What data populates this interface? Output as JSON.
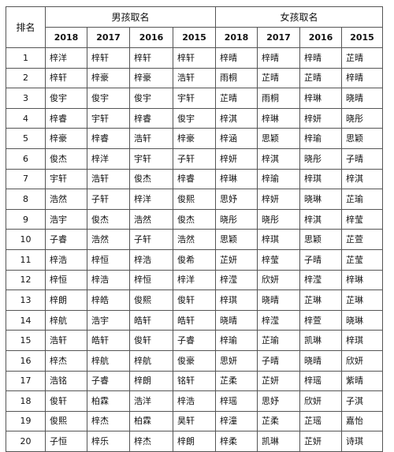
{
  "header": {
    "rank_label": "排名",
    "boys_label": "男孩取名",
    "girls_label": "女孩取名",
    "years": [
      "2018",
      "2017",
      "2016",
      "2015"
    ]
  },
  "rows": [
    {
      "rank": "1",
      "boys": [
        "梓洋",
        "梓轩",
        "梓轩",
        "梓轩"
      ],
      "girls": [
        "梓晴",
        "梓晴",
        "梓晴",
        "芷晴"
      ]
    },
    {
      "rank": "2",
      "boys": [
        "梓轩",
        "梓豪",
        "梓豪",
        "浩轩"
      ],
      "girls": [
        "雨桐",
        "芷晴",
        "芷晴",
        "梓晴"
      ]
    },
    {
      "rank": "3",
      "boys": [
        "俊宇",
        "俊宇",
        "俊宇",
        "宇轩"
      ],
      "girls": [
        "芷晴",
        "雨桐",
        "梓琳",
        "晓晴"
      ]
    },
    {
      "rank": "4",
      "boys": [
        "梓睿",
        "宇轩",
        "梓睿",
        "俊宇"
      ],
      "girls": [
        "梓淇",
        "梓琳",
        "梓妍",
        "晓彤"
      ]
    },
    {
      "rank": "5",
      "boys": [
        "梓豪",
        "梓睿",
        "浩轩",
        "梓豪"
      ],
      "girls": [
        "梓涵",
        "思颖",
        "梓瑜",
        "思颖"
      ]
    },
    {
      "rank": "6",
      "boys": [
        "俊杰",
        "梓洋",
        "宇轩",
        "子轩"
      ],
      "girls": [
        "梓妍",
        "梓淇",
        "晓彤",
        "子晴"
      ]
    },
    {
      "rank": "7",
      "boys": [
        "宇轩",
        "浩轩",
        "俊杰",
        "梓睿"
      ],
      "girls": [
        "梓琳",
        "梓瑜",
        "梓琪",
        "梓淇"
      ]
    },
    {
      "rank": "8",
      "boys": [
        "浩然",
        "子轩",
        "梓洋",
        "俊熙"
      ],
      "girls": [
        "思妤",
        "梓妍",
        "晓琳",
        "芷瑜"
      ]
    },
    {
      "rank": "9",
      "boys": [
        "浩宇",
        "俊杰",
        "浩然",
        "俊杰"
      ],
      "girls": [
        "晓彤",
        "晓彤",
        "梓淇",
        "梓莹"
      ]
    },
    {
      "rank": "10",
      "boys": [
        "子睿",
        "浩然",
        "子轩",
        "浩然"
      ],
      "girls": [
        "思颖",
        "梓琪",
        "思颖",
        "芷萱"
      ]
    },
    {
      "rank": "11",
      "boys": [
        "梓浩",
        "梓恒",
        "梓浩",
        "俊希"
      ],
      "girls": [
        "芷妍",
        "梓莹",
        "子晴",
        "芷莹"
      ]
    },
    {
      "rank": "12",
      "boys": [
        "梓恒",
        "梓浩",
        "梓恒",
        "梓洋"
      ],
      "girls": [
        "梓滢",
        "欣妍",
        "梓滢",
        "梓琳"
      ]
    },
    {
      "rank": "13",
      "boys": [
        "梓朗",
        "梓皓",
        "俊熙",
        "俊轩"
      ],
      "girls": [
        "梓琪",
        "晓晴",
        "芷琳",
        "芷琳"
      ]
    },
    {
      "rank": "14",
      "boys": [
        "梓航",
        "浩宇",
        "皓轩",
        "皓轩"
      ],
      "girls": [
        "晓晴",
        "梓滢",
        "梓萱",
        "晓琳"
      ]
    },
    {
      "rank": "15",
      "boys": [
        "浩轩",
        "皓轩",
        "俊轩",
        "子睿"
      ],
      "girls": [
        "梓瑜",
        "芷瑜",
        "凯琳",
        "梓琪"
      ]
    },
    {
      "rank": "16",
      "boys": [
        "梓杰",
        "梓航",
        "梓航",
        "俊豪"
      ],
      "girls": [
        "思妍",
        "子晴",
        "晓晴",
        "欣妍"
      ]
    },
    {
      "rank": "17",
      "boys": [
        "浩铭",
        "子睿",
        "梓朗",
        "铭轩"
      ],
      "girls": [
        "芷柔",
        "芷妍",
        "梓瑶",
        "紫晴"
      ]
    },
    {
      "rank": "18",
      "boys": [
        "俊轩",
        "柏霖",
        "浩洋",
        "梓浩"
      ],
      "girls": [
        "梓瑶",
        "思妤",
        "欣妍",
        "子淇"
      ]
    },
    {
      "rank": "19",
      "boys": [
        "俊熙",
        "梓杰",
        "柏霖",
        "昊轩"
      ],
      "girls": [
        "梓潼",
        "芷柔",
        "芷瑶",
        "嘉怡"
      ]
    },
    {
      "rank": "20",
      "boys": [
        "子恒",
        "梓乐",
        "梓杰",
        "梓朗"
      ],
      "girls": [
        "梓柔",
        "凯琳",
        "芷妍",
        "诗琪"
      ]
    }
  ]
}
